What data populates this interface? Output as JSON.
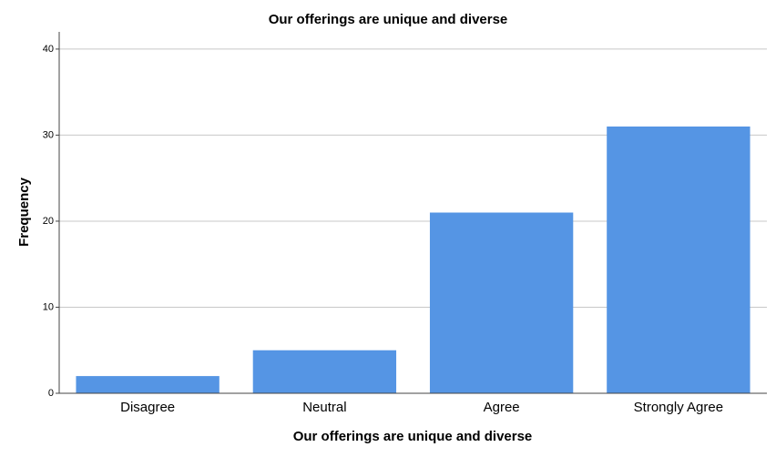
{
  "chart_data": {
    "type": "bar",
    "title": "Our offerings are unique and diverse",
    "x_label": "Our offerings are unique and diverse",
    "y_label": "Frequency",
    "categories": [
      "Disagree",
      "Neutral",
      "Agree",
      "Strongly Agree"
    ],
    "values": [
      2,
      5,
      21,
      31
    ],
    "color": "#5595e4",
    "ylim": [
      0,
      42
    ],
    "yticks": [
      0,
      10,
      20,
      30,
      40
    ],
    "grid": true
  }
}
